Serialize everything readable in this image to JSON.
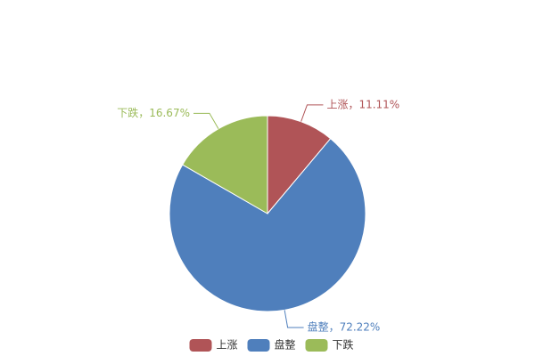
{
  "chart_data": {
    "type": "pie",
    "categories": [
      "上涨",
      "盘整",
      "下跌"
    ],
    "values": [
      11.11,
      72.22,
      16.67
    ],
    "value_labels": [
      "上涨，11.11%",
      "盘整，72.22%",
      "下跌，16.67%"
    ],
    "colors": [
      "#b05457",
      "#4f7fbc",
      "#9bbb59"
    ],
    "legend": "bottom"
  }
}
